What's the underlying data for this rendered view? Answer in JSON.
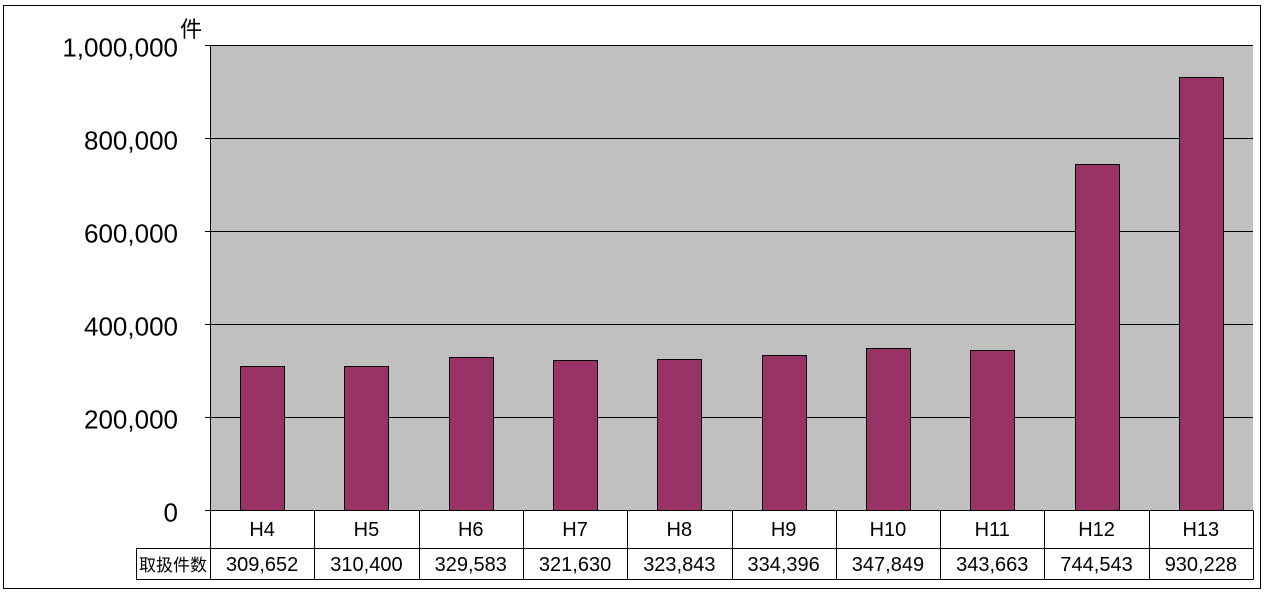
{
  "chart_data": {
    "type": "bar",
    "categories": [
      "H4",
      "H5",
      "H6",
      "H7",
      "H8",
      "H9",
      "H10",
      "H11",
      "H12",
      "H13"
    ],
    "series": [
      {
        "name": "取扱件数",
        "values": [
          309652,
          310400,
          329583,
          321630,
          323843,
          334396,
          347849,
          343663,
          744543,
          930228
        ],
        "color": "#993366"
      }
    ],
    "y_unit": "件",
    "ylim": [
      0,
      1000000
    ],
    "yticks": [
      0,
      200000,
      400000,
      600000,
      800000,
      1000000
    ],
    "grid": true,
    "legend": "none",
    "data_table": true
  },
  "colors": {
    "page_background": "#FFFFFF",
    "plot_background": "#C0C0C0",
    "bar_stroke": "#000000"
  }
}
